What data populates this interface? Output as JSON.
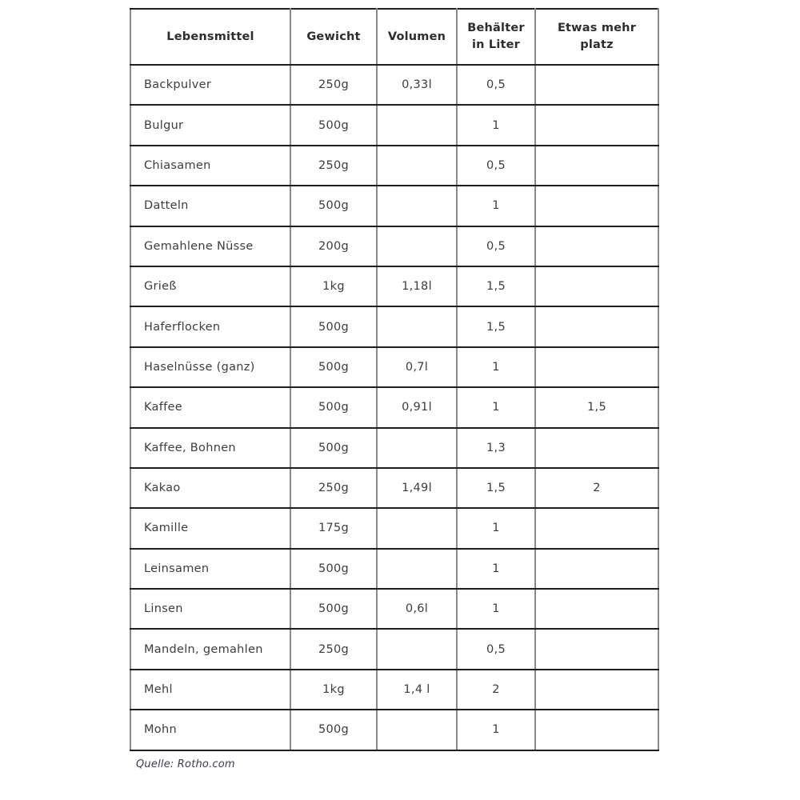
{
  "table": {
    "columns": [
      "Lebensmittel",
      "Gewicht",
      "Volumen",
      "Behälter in Liter",
      "Etwas mehr platz"
    ],
    "rows": [
      [
        "Backpulver",
        "250g",
        "0,33l",
        "0,5",
        ""
      ],
      [
        "Bulgur",
        "500g",
        "",
        "1",
        ""
      ],
      [
        "Chiasamen",
        "250g",
        "",
        "0,5",
        ""
      ],
      [
        "Datteln",
        "500g",
        "",
        "1",
        ""
      ],
      [
        "Gemahlene Nüsse",
        "200g",
        "",
        "0,5",
        ""
      ],
      [
        "Grieß",
        "1kg",
        "1,18l",
        "1,5",
        ""
      ],
      [
        "Haferflocken",
        "500g",
        "",
        "1,5",
        ""
      ],
      [
        "Haselnüsse (ganz)",
        "500g",
        "0,7l",
        "1",
        ""
      ],
      [
        "Kaffee",
        "500g",
        "0,91l",
        "1",
        "1,5"
      ],
      [
        "Kaffee, Bohnen",
        "500g",
        "",
        "1,3",
        ""
      ],
      [
        "Kakao",
        "250g",
        "1,49l",
        "1,5",
        "2"
      ],
      [
        "Kamille",
        "175g",
        "",
        "1",
        ""
      ],
      [
        "Leinsamen",
        "500g",
        "",
        "1",
        ""
      ],
      [
        "Linsen",
        "500g",
        "0,6l",
        "1",
        ""
      ],
      [
        "Mandeln, gemahlen",
        "250g",
        "",
        "0,5",
        ""
      ],
      [
        "Mehl",
        "1kg",
        "1,4 l",
        "2",
        ""
      ],
      [
        "Mohn",
        "500g",
        "",
        "1",
        ""
      ]
    ]
  },
  "footer": {
    "source": "Quelle: Rotho.com"
  },
  "colors": {
    "horizontal_border": "#1f1f1f",
    "vertical_border": "#8a8a8a",
    "header_text": "#2d2d2d",
    "body_text": "#3d3d3d",
    "source_text": "#3a3a52",
    "background": "#ffffff"
  }
}
